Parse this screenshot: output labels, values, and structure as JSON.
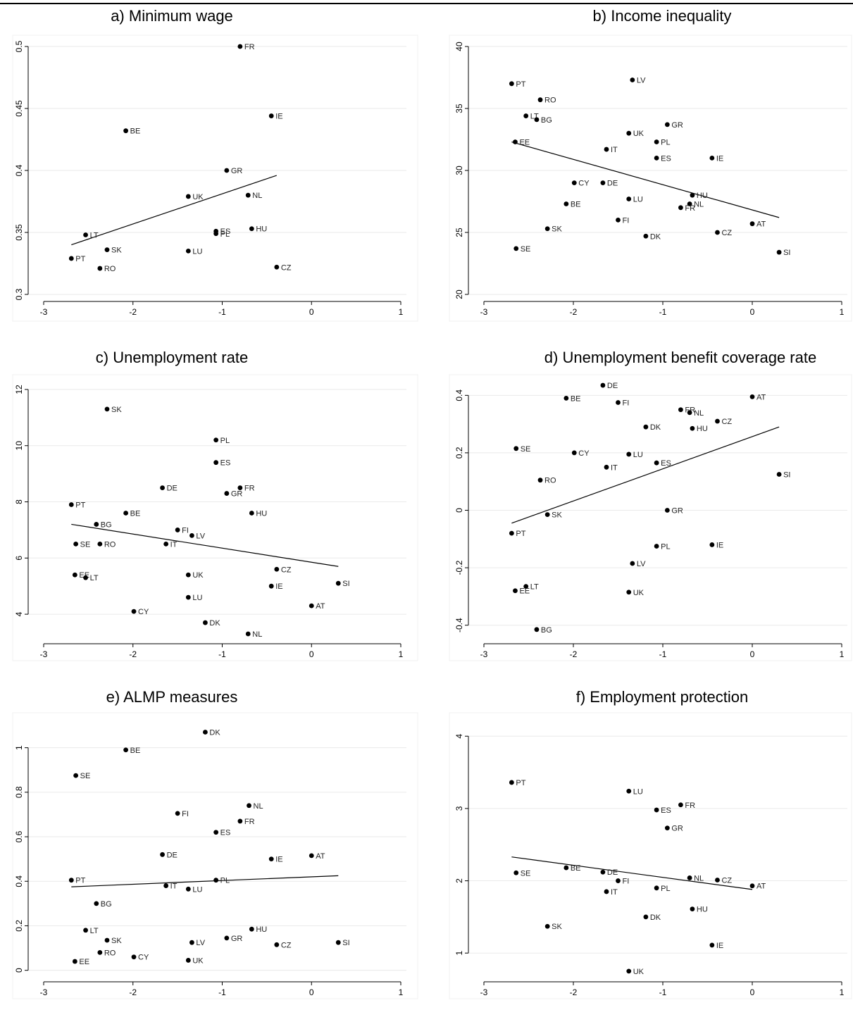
{
  "chart_data": [
    {
      "type": "scatter",
      "title": "a) Minimum wage",
      "xlim": [
        -3,
        1
      ],
      "ylim": [
        0.3,
        0.5
      ],
      "xticks": [
        -3,
        -2,
        -1,
        0,
        1
      ],
      "xtick_labels": [
        "-3",
        "-2",
        "-1",
        "0",
        "1"
      ],
      "yticks": [
        0.3,
        0.35,
        0.4,
        0.45,
        0.5
      ],
      "ytick_labels": [
        "0.3",
        "0.35",
        "0.4",
        "0.45",
        "0.5"
      ],
      "grid": true,
      "points": [
        {
          "label": "FR",
          "x": -0.8,
          "y": 0.5
        },
        {
          "label": "IE",
          "x": -0.45,
          "y": 0.444
        },
        {
          "label": "BE",
          "x": -2.08,
          "y": 0.432
        },
        {
          "label": "GR",
          "x": -0.95,
          "y": 0.4
        },
        {
          "label": "UK",
          "x": -1.38,
          "y": 0.379
        },
        {
          "label": "NL",
          "x": -0.71,
          "y": 0.38
        },
        {
          "label": "ES",
          "x": -1.07,
          "y": 0.351
        },
        {
          "label": "PL",
          "x": -1.07,
          "y": 0.349
        },
        {
          "label": "HU",
          "x": -0.67,
          "y": 0.353
        },
        {
          "label": "LT",
          "x": -2.53,
          "y": 0.348
        },
        {
          "label": "SK",
          "x": -2.29,
          "y": 0.336
        },
        {
          "label": "LU",
          "x": -1.38,
          "y": 0.335
        },
        {
          "label": "PT",
          "x": -2.69,
          "y": 0.329
        },
        {
          "label": "RO",
          "x": -2.37,
          "y": 0.321
        },
        {
          "label": "CZ",
          "x": -0.39,
          "y": 0.322
        }
      ],
      "fit_line": {
        "x": [
          -2.69,
          -0.39
        ],
        "y": [
          0.34,
          0.396
        ]
      }
    },
    {
      "type": "scatter",
      "title": "b) Income inequality",
      "xlim": [
        -3,
        1
      ],
      "ylim": [
        20,
        40
      ],
      "xticks": [
        -3,
        -2,
        -1,
        0,
        1
      ],
      "xtick_labels": [
        "-3",
        "-2",
        "-1",
        "0",
        "1"
      ],
      "yticks": [
        20,
        25,
        30,
        35,
        40
      ],
      "ytick_labels": [
        "20",
        "25",
        "30",
        "35",
        "40"
      ],
      "grid": true,
      "points": [
        {
          "label": "PT",
          "x": -2.69,
          "y": 37
        },
        {
          "label": "LV",
          "x": -1.34,
          "y": 37.3
        },
        {
          "label": "RO",
          "x": -2.37,
          "y": 35.7
        },
        {
          "label": "LT",
          "x": -2.53,
          "y": 34.4
        },
        {
          "label": "BG",
          "x": -2.41,
          "y": 34.1
        },
        {
          "label": "GR",
          "x": -0.95,
          "y": 33.7
        },
        {
          "label": "UK",
          "x": -1.38,
          "y": 33
        },
        {
          "label": "EE",
          "x": -2.65,
          "y": 32.3
        },
        {
          "label": "PL",
          "x": -1.07,
          "y": 32.3
        },
        {
          "label": "IT",
          "x": -1.63,
          "y": 31.7
        },
        {
          "label": "ES",
          "x": -1.07,
          "y": 31
        },
        {
          "label": "IE",
          "x": -0.45,
          "y": 31
        },
        {
          "label": "CY",
          "x": -1.99,
          "y": 29
        },
        {
          "label": "DE",
          "x": -1.67,
          "y": 29
        },
        {
          "label": "HU",
          "x": -0.67,
          "y": 28
        },
        {
          "label": "LU",
          "x": -1.38,
          "y": 27.7
        },
        {
          "label": "NL",
          "x": -0.7,
          "y": 27.3
        },
        {
          "label": "BE",
          "x": -2.08,
          "y": 27.3
        },
        {
          "label": "FR",
          "x": -0.8,
          "y": 27
        },
        {
          "label": "FI",
          "x": -1.5,
          "y": 26
        },
        {
          "label": "AT",
          "x": 0,
          "y": 25.7
        },
        {
          "label": "SK",
          "x": -2.29,
          "y": 25.3
        },
        {
          "label": "CZ",
          "x": -0.39,
          "y": 25
        },
        {
          "label": "DK",
          "x": -1.19,
          "y": 24.7
        },
        {
          "label": "SE",
          "x": -2.64,
          "y": 23.7
        },
        {
          "label": "SI",
          "x": 0.3,
          "y": 23.4
        }
      ],
      "fit_line": {
        "x": [
          -2.69,
          0.3
        ],
        "y": [
          32.3,
          26.2
        ]
      }
    },
    {
      "type": "scatter",
      "title": "c) Unemployment rate",
      "xlim": [
        -3,
        1
      ],
      "ylim": [
        3.2,
        12.2
      ],
      "xticks": [
        -3,
        -2,
        -1,
        0,
        1
      ],
      "xtick_labels": [
        "-3",
        "-2",
        "-1",
        "0",
        "1"
      ],
      "yticks": [
        4,
        6,
        8,
        10,
        12
      ],
      "ytick_labels": [
        "4",
        "6",
        "8",
        "10",
        "12"
      ],
      "grid": true,
      "points": [
        {
          "label": "SK",
          "x": -2.29,
          "y": 11.3
        },
        {
          "label": "PL",
          "x": -1.07,
          "y": 10.2
        },
        {
          "label": "ES",
          "x": -1.07,
          "y": 9.4
        },
        {
          "label": "DE",
          "x": -1.67,
          "y": 8.5
        },
        {
          "label": "FR",
          "x": -0.8,
          "y": 8.5
        },
        {
          "label": "GR",
          "x": -0.95,
          "y": 8.3
        },
        {
          "label": "PT",
          "x": -2.69,
          "y": 7.9
        },
        {
          "label": "BE",
          "x": -2.08,
          "y": 7.6
        },
        {
          "label": "HU",
          "x": -0.67,
          "y": 7.6
        },
        {
          "label": "BG",
          "x": -2.41,
          "y": 7.2
        },
        {
          "label": "FI",
          "x": -1.5,
          "y": 7
        },
        {
          "label": "LV",
          "x": -1.34,
          "y": 6.8
        },
        {
          "label": "IT",
          "x": -1.63,
          "y": 6.5
        },
        {
          "label": "SE",
          "x": -2.64,
          "y": 6.5
        },
        {
          "label": "RO",
          "x": -2.37,
          "y": 6.5
        },
        {
          "label": "CZ",
          "x": -0.39,
          "y": 5.6
        },
        {
          "label": "UK",
          "x": -1.38,
          "y": 5.4
        },
        {
          "label": "EE",
          "x": -2.65,
          "y": 5.4
        },
        {
          "label": "LT",
          "x": -2.53,
          "y": 5.3
        },
        {
          "label": "SI",
          "x": 0.3,
          "y": 5.1
        },
        {
          "label": "IE",
          "x": -0.45,
          "y": 5
        },
        {
          "label": "LU",
          "x": -1.38,
          "y": 4.6
        },
        {
          "label": "AT",
          "x": 0,
          "y": 4.3
        },
        {
          "label": "CY",
          "x": -1.99,
          "y": 4.1
        },
        {
          "label": "DK",
          "x": -1.19,
          "y": 3.7
        },
        {
          "label": "NL",
          "x": -0.71,
          "y": 3.3
        }
      ],
      "fit_line": {
        "x": [
          -2.69,
          0.3
        ],
        "y": [
          7.2,
          5.7
        ]
      }
    },
    {
      "type": "scatter",
      "title": "d) Unemployment benefit coverage rate",
      "xlim": [
        -3,
        1
      ],
      "ylim": [
        -0.44,
        0.44
      ],
      "xticks": [
        -3,
        -2,
        -1,
        0,
        1
      ],
      "xtick_labels": [
        "-3",
        "-2",
        "-1",
        "0",
        "1"
      ],
      "yticks": [
        -0.4,
        -0.2,
        0,
        0.2,
        0.4
      ],
      "ytick_labels": [
        "-0.4",
        "-0.2",
        "0",
        "0.2",
        "0.4"
      ],
      "grid": true,
      "points": [
        {
          "label": "DE",
          "x": -1.67,
          "y": 0.435
        },
        {
          "label": "AT",
          "x": 0,
          "y": 0.395
        },
        {
          "label": "BE",
          "x": -2.08,
          "y": 0.39
        },
        {
          "label": "FI",
          "x": -1.5,
          "y": 0.375
        },
        {
          "label": "FR",
          "x": -0.8,
          "y": 0.35
        },
        {
          "label": "NL",
          "x": -0.7,
          "y": 0.34
        },
        {
          "label": "CZ",
          "x": -0.39,
          "y": 0.31
        },
        {
          "label": "DK",
          "x": -1.19,
          "y": 0.29
        },
        {
          "label": "HU",
          "x": -0.67,
          "y": 0.285
        },
        {
          "label": "SE",
          "x": -2.64,
          "y": 0.215
        },
        {
          "label": "CY",
          "x": -1.99,
          "y": 0.2
        },
        {
          "label": "LU",
          "x": -1.38,
          "y": 0.195
        },
        {
          "label": "ES",
          "x": -1.07,
          "y": 0.165
        },
        {
          "label": "IT",
          "x": -1.63,
          "y": 0.15
        },
        {
          "label": "SI",
          "x": 0.3,
          "y": 0.125
        },
        {
          "label": "RO",
          "x": -2.37,
          "y": 0.105
        },
        {
          "label": "GR",
          "x": -0.95,
          "y": 0
        },
        {
          "label": "SK",
          "x": -2.29,
          "y": -0.015
        },
        {
          "label": "PT",
          "x": -2.69,
          "y": -0.08
        },
        {
          "label": "IE",
          "x": -0.45,
          "y": -0.12
        },
        {
          "label": "PL",
          "x": -1.07,
          "y": -0.125
        },
        {
          "label": "LV",
          "x": -1.34,
          "y": -0.185
        },
        {
          "label": "LT",
          "x": -2.53,
          "y": -0.265
        },
        {
          "label": "EE",
          "x": -2.65,
          "y": -0.28
        },
        {
          "label": "UK",
          "x": -1.38,
          "y": -0.285
        },
        {
          "label": "BG",
          "x": -2.41,
          "y": -0.415
        }
      ],
      "fit_line": {
        "x": [
          -2.69,
          0.3
        ],
        "y": [
          -0.045,
          0.29
        ]
      }
    },
    {
      "type": "scatter",
      "title": "e) ALMP measures",
      "xlim": [
        -3,
        1
      ],
      "ylim": [
        -0.02,
        1.1
      ],
      "xticks": [
        -3,
        -2,
        -1,
        0,
        1
      ],
      "xtick_labels": [
        "-3",
        "-2",
        "-1",
        "0",
        "1"
      ],
      "yticks": [
        0,
        0.2,
        0.4,
        0.6,
        0.8,
        1
      ],
      "ytick_labels": [
        "0",
        "0.2",
        "0.4",
        "0.6",
        "0.8",
        "1"
      ],
      "grid": true,
      "points": [
        {
          "label": "DK",
          "x": -1.19,
          "y": 1.07
        },
        {
          "label": "BE",
          "x": -2.08,
          "y": 0.99
        },
        {
          "label": "SE",
          "x": -2.64,
          "y": 0.875
        },
        {
          "label": "NL",
          "x": -0.7,
          "y": 0.74
        },
        {
          "label": "FI",
          "x": -1.5,
          "y": 0.705
        },
        {
          "label": "FR",
          "x": -0.8,
          "y": 0.67
        },
        {
          "label": "ES",
          "x": -1.07,
          "y": 0.62
        },
        {
          "label": "DE",
          "x": -1.67,
          "y": 0.52
        },
        {
          "label": "AT",
          "x": 0,
          "y": 0.515
        },
        {
          "label": "IE",
          "x": -0.45,
          "y": 0.5
        },
        {
          "label": "PT",
          "x": -2.69,
          "y": 0.405
        },
        {
          "label": "PL",
          "x": -1.07,
          "y": 0.405
        },
        {
          "label": "IT",
          "x": -1.63,
          "y": 0.38
        },
        {
          "label": "LU",
          "x": -1.38,
          "y": 0.365
        },
        {
          "label": "BG",
          "x": -2.41,
          "y": 0.3
        },
        {
          "label": "HU",
          "x": -0.67,
          "y": 0.185
        },
        {
          "label": "LT",
          "x": -2.53,
          "y": 0.18
        },
        {
          "label": "GR",
          "x": -0.95,
          "y": 0.145
        },
        {
          "label": "SK",
          "x": -2.29,
          "y": 0.135
        },
        {
          "label": "SI",
          "x": 0.3,
          "y": 0.125
        },
        {
          "label": "LV",
          "x": -1.34,
          "y": 0.125
        },
        {
          "label": "CZ",
          "x": -0.39,
          "y": 0.115
        },
        {
          "label": "RO",
          "x": -2.37,
          "y": 0.08
        },
        {
          "label": "CY",
          "x": -1.99,
          "y": 0.06
        },
        {
          "label": "UK",
          "x": -1.38,
          "y": 0.045
        },
        {
          "label": "EE",
          "x": -2.65,
          "y": 0.04
        }
      ],
      "fit_line": {
        "x": [
          -2.69,
          0.3
        ],
        "y": [
          0.375,
          0.425
        ]
      }
    },
    {
      "type": "scatter",
      "title": "f) Employment protection",
      "xlim": [
        -3,
        1
      ],
      "ylim": [
        0.7,
        4.1
      ],
      "xticks": [
        -3,
        -2,
        -1,
        0,
        1
      ],
      "xtick_labels": [
        "-3",
        "-2",
        "-1",
        "0",
        "1"
      ],
      "yticks": [
        1,
        2,
        3,
        4
      ],
      "ytick_labels": [
        "1",
        "2",
        "3",
        "4"
      ],
      "grid": true,
      "points": [
        {
          "label": "PT",
          "x": -2.69,
          "y": 3.36
        },
        {
          "label": "LU",
          "x": -1.38,
          "y": 3.24
        },
        {
          "label": "FR",
          "x": -0.8,
          "y": 3.05
        },
        {
          "label": "ES",
          "x": -1.07,
          "y": 2.98
        },
        {
          "label": "GR",
          "x": -0.95,
          "y": 2.73
        },
        {
          "label": "BE",
          "x": -2.08,
          "y": 2.18
        },
        {
          "label": "DE",
          "x": -1.67,
          "y": 2.12
        },
        {
          "label": "SE",
          "x": -2.64,
          "y": 2.11
        },
        {
          "label": "NL",
          "x": -0.7,
          "y": 2.04
        },
        {
          "label": "CZ",
          "x": -0.39,
          "y": 2.01
        },
        {
          "label": "FI",
          "x": -1.5,
          "y": 2.0
        },
        {
          "label": "AT",
          "x": 0,
          "y": 1.93
        },
        {
          "label": "PL",
          "x": -1.07,
          "y": 1.9
        },
        {
          "label": "IT",
          "x": -1.63,
          "y": 1.85
        },
        {
          "label": "HU",
          "x": -0.67,
          "y": 1.61
        },
        {
          "label": "DK",
          "x": -1.19,
          "y": 1.5
        },
        {
          "label": "SK",
          "x": -2.29,
          "y": 1.37
        },
        {
          "label": "IE",
          "x": -0.45,
          "y": 1.11
        },
        {
          "label": "UK",
          "x": -1.38,
          "y": 0.75
        }
      ],
      "fit_line": {
        "x": [
          -2.69,
          0
        ],
        "y": [
          2.33,
          1.88
        ]
      }
    }
  ]
}
